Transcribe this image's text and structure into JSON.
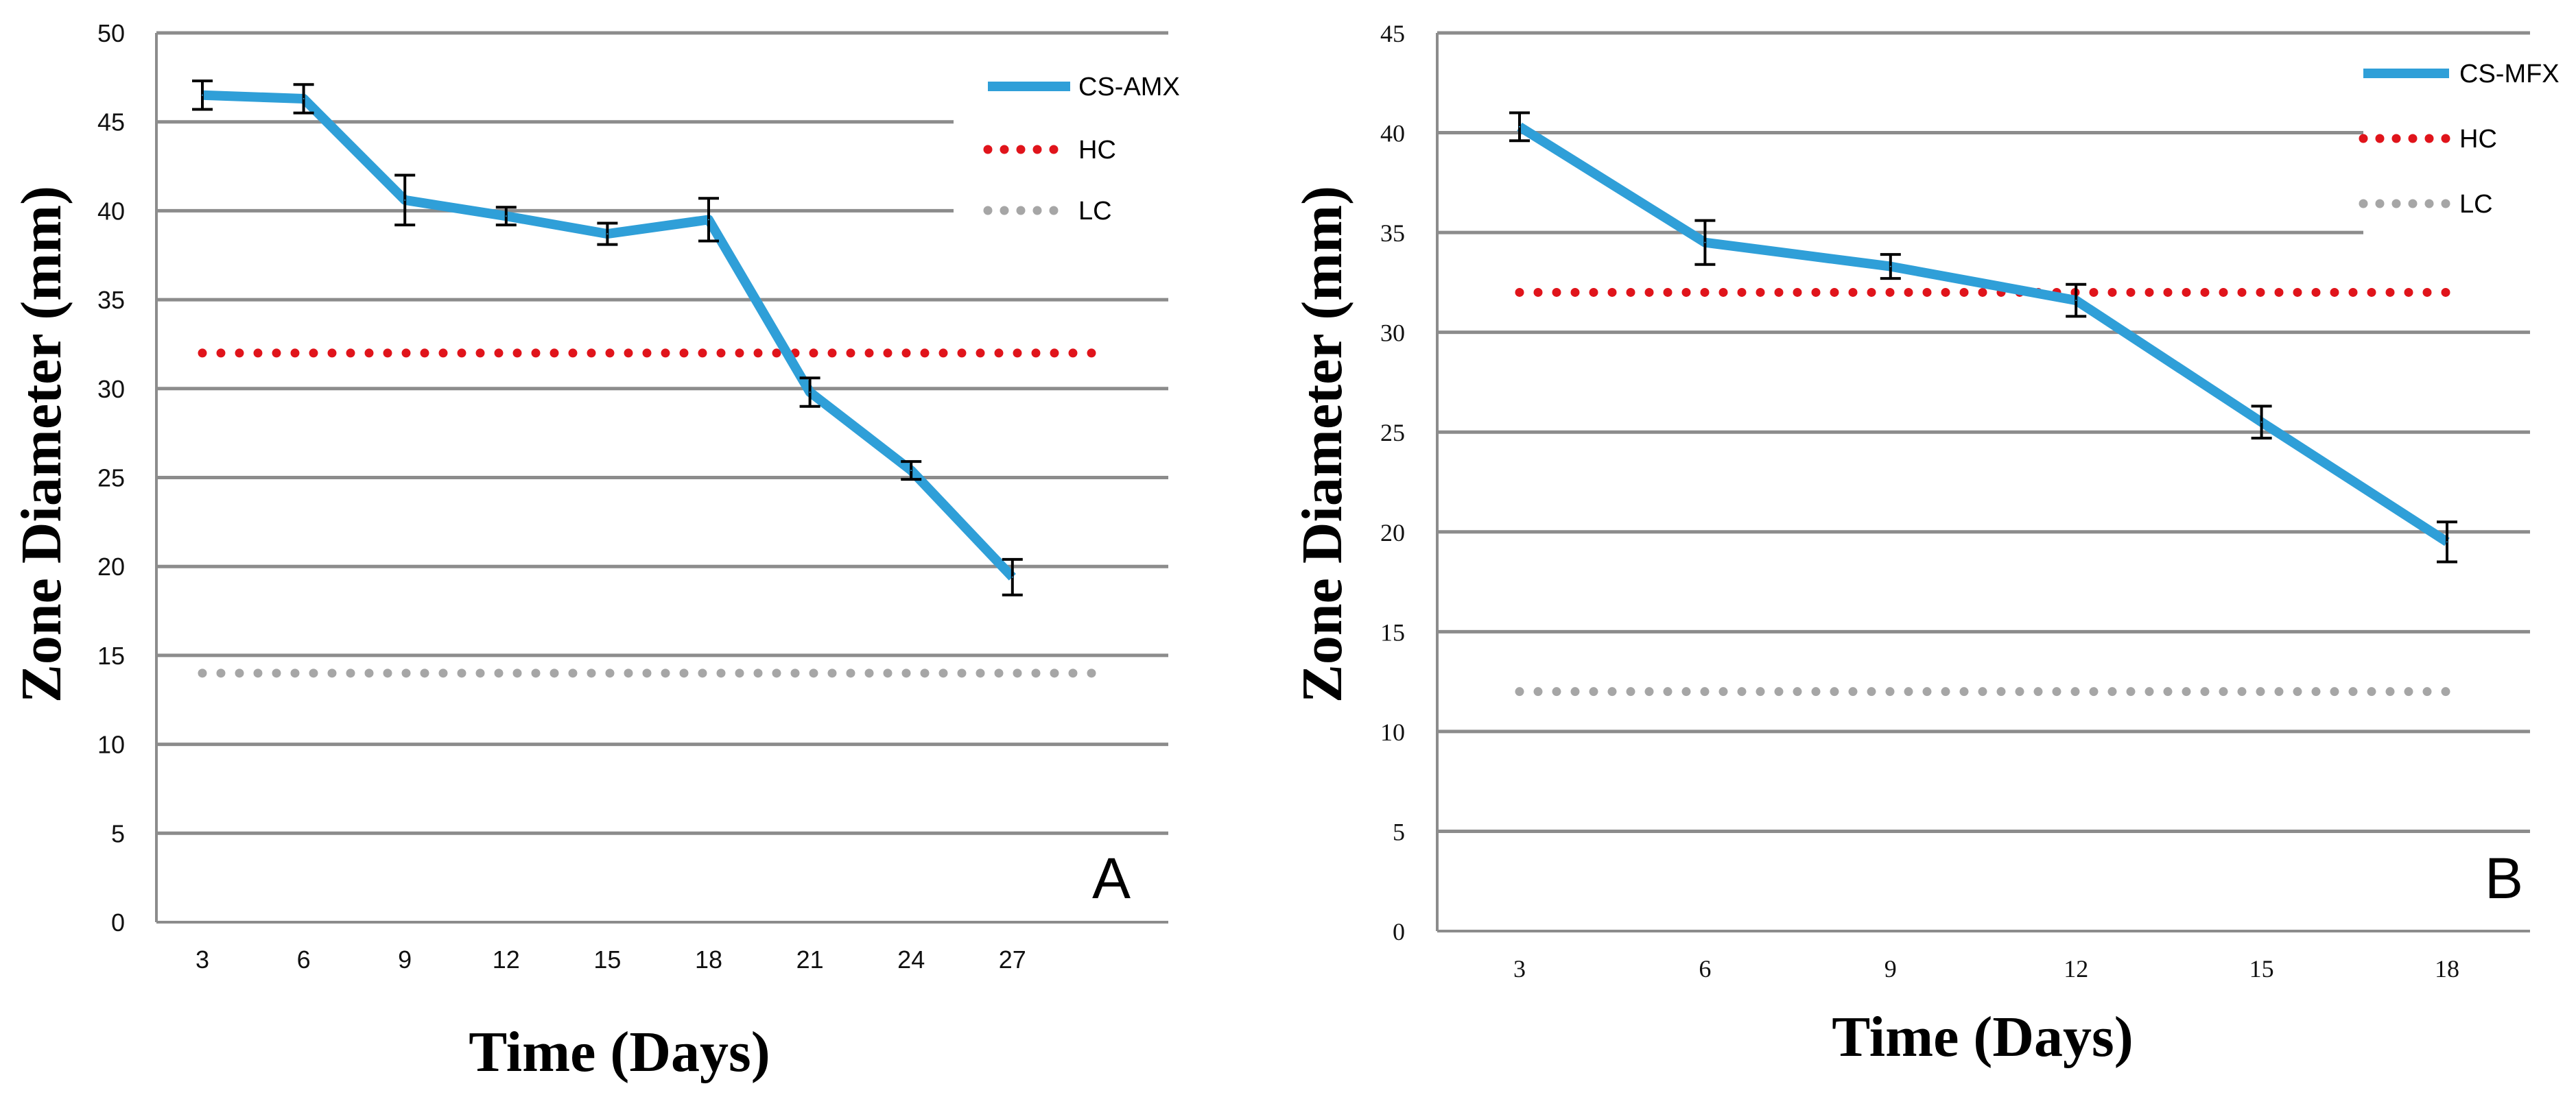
{
  "chart_data": [
    {
      "type": "line",
      "panel_label": "A",
      "xlabel": "Time (Days)",
      "ylabel": "Zone Diameter (mm)",
      "ylim": [
        0,
        50
      ],
      "yticks": [
        0,
        5,
        10,
        15,
        20,
        25,
        30,
        35,
        40,
        45,
        50
      ],
      "categories": [
        "3",
        "6",
        "9",
        "12",
        "15",
        "18",
        "21",
        "24",
        "27"
      ],
      "grid": true,
      "legend_position": "top-right",
      "series": [
        {
          "name": "CS-AMX",
          "style": "solid",
          "color": "#2f9fd8",
          "values": [
            46.5,
            46.3,
            40.6,
            39.7,
            38.7,
            39.5,
            29.8,
            25.4,
            19.4
          ],
          "errors": [
            0.8,
            0.8,
            1.4,
            0.5,
            0.6,
            1.2,
            0.8,
            0.5,
            1.0
          ]
        },
        {
          "name": "HC",
          "style": "dotted",
          "color": "#e0141b",
          "constant": 32
        },
        {
          "name": "LC",
          "style": "dotted",
          "color": "#a6a6a6",
          "constant": 14
        }
      ]
    },
    {
      "type": "line",
      "panel_label": "B",
      "xlabel": "Time (Days)",
      "ylabel": "Zone Diameter (mm)",
      "ylim": [
        0,
        45
      ],
      "yticks": [
        0,
        5,
        10,
        15,
        20,
        25,
        30,
        35,
        40,
        45
      ],
      "categories": [
        "3",
        "6",
        "9",
        "12",
        "15",
        "18"
      ],
      "grid": true,
      "legend_position": "top-right",
      "series": [
        {
          "name": "CS-MFX",
          "style": "solid",
          "color": "#2f9fd8",
          "values": [
            40.3,
            34.5,
            33.3,
            31.6,
            25.5,
            19.5
          ],
          "errors": [
            0.7,
            1.1,
            0.6,
            0.8,
            0.8,
            1.0
          ]
        },
        {
          "name": "HC",
          "style": "dotted",
          "color": "#e0141b",
          "constant": 32
        },
        {
          "name": "LC",
          "style": "dotted",
          "color": "#a6a6a6",
          "constant": 12
        }
      ]
    }
  ]
}
